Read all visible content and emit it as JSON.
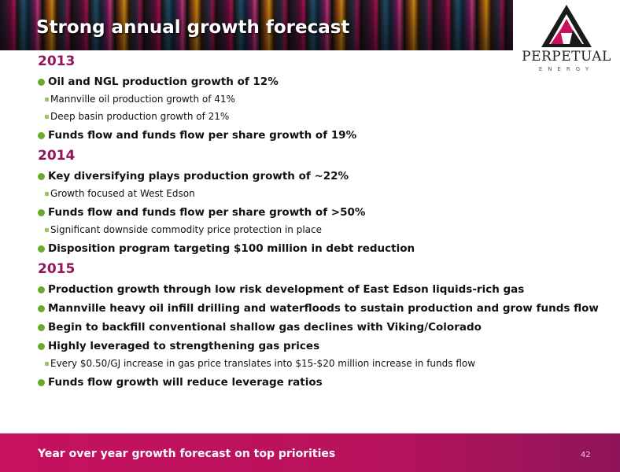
{
  "slide": {
    "title": "Strong annual growth forecast",
    "logo": {
      "name": "PERPETUAL",
      "sub": "ENERGY"
    },
    "sections": [
      {
        "year": "2013",
        "items": [
          {
            "level": 1,
            "text": "Oil and NGL production growth of 12%"
          },
          {
            "level": 2,
            "text": "Mannville oil production growth of 41%"
          },
          {
            "level": 2,
            "text": "Deep basin production growth of 21%"
          },
          {
            "level": 1,
            "text": "Funds flow and funds flow per share growth of 19%"
          }
        ]
      },
      {
        "year": "2014",
        "items": [
          {
            "level": 1,
            "text": "Key diversifying plays production growth of  ~22%"
          },
          {
            "level": 2,
            "text": "Growth focused at West Edson"
          },
          {
            "level": 1,
            "text": "Funds flow and funds flow per share growth of >50%"
          },
          {
            "level": 2,
            "text": "Significant downside commodity price protection in place"
          },
          {
            "level": 1,
            "text": "Disposition program targeting $100 million in debt reduction"
          }
        ]
      },
      {
        "year": "2015",
        "items": [
          {
            "level": 1,
            "text": "Production growth through low risk development of East Edson liquids-rich gas"
          },
          {
            "level": 1,
            "text": "Mannville heavy oil infill drilling and waterfloods to sustain production and grow funds flow"
          },
          {
            "level": 1,
            "text": "Begin to backfill conventional shallow gas declines with Viking/Colorado"
          },
          {
            "level": 1,
            "text": "Highly leveraged to strengthening gas prices"
          },
          {
            "level": 2,
            "text": "Every $0.50/GJ increase in gas price translates into $15-$20 million increase in funds flow"
          },
          {
            "level": 1,
            "text": "Funds flow growth will reduce leverage ratios"
          }
        ]
      }
    ],
    "footer": {
      "text": "Year over year growth forecast on top priorities",
      "page_number": "42"
    },
    "colors": {
      "accent": "#8f1459",
      "footer": "#c6115e",
      "bullet": "#6aaa2a"
    }
  }
}
